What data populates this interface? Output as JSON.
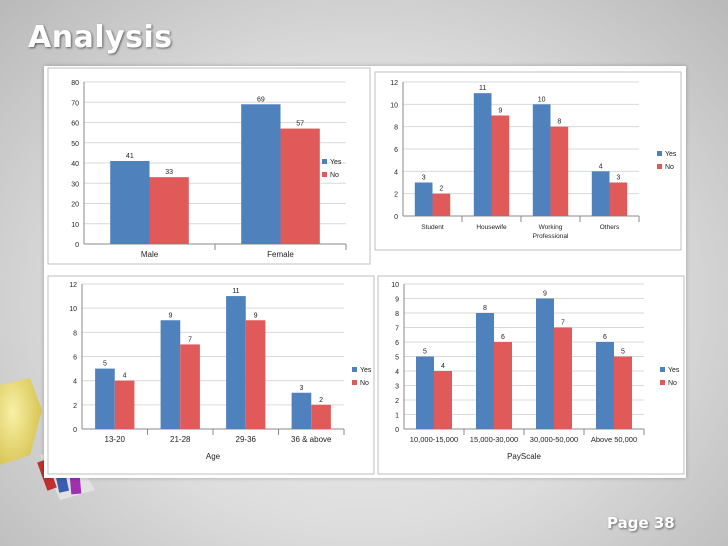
{
  "slide": {
    "title": "Analysis",
    "page_label": "Page 38"
  },
  "colors": {
    "yes": "#4f81bd",
    "no": "#e05a5a",
    "grid": "#d9d9d9",
    "axis": "#8a8a8a",
    "text": "#222222"
  },
  "chart_data": [
    {
      "type": "bar",
      "title": "",
      "xlabel": "",
      "ylabel": "",
      "categories": [
        "Male",
        "Female"
      ],
      "series": [
        {
          "name": "Yes",
          "values": [
            41,
            69
          ]
        },
        {
          "name": "No",
          "values": [
            33,
            57
          ]
        }
      ],
      "ylim": [
        0,
        80
      ],
      "ytick_step": 10,
      "grid": true,
      "legend": "right"
    },
    {
      "type": "bar",
      "title": "",
      "xlabel": "",
      "ylabel": "",
      "categories": [
        "Student",
        "Housewife",
        "Working Professional",
        "Others"
      ],
      "series": [
        {
          "name": "Yes",
          "values": [
            3,
            11,
            10,
            4
          ]
        },
        {
          "name": "No",
          "values": [
            2,
            9,
            8,
            3
          ]
        }
      ],
      "ylim": [
        0,
        12
      ],
      "ytick_step": 2,
      "grid": true,
      "legend": "right"
    },
    {
      "type": "bar",
      "title": "",
      "xlabel": "Age",
      "ylabel": "",
      "categories": [
        "13-20",
        "21-28",
        "29-36",
        "36 & above"
      ],
      "series": [
        {
          "name": "Yes",
          "values": [
            5,
            9,
            11,
            3
          ]
        },
        {
          "name": "No",
          "values": [
            4,
            7,
            9,
            2
          ]
        }
      ],
      "ylim": [
        0,
        12
      ],
      "ytick_step": 2,
      "grid": true,
      "legend": "right"
    },
    {
      "type": "bar",
      "title": "",
      "xlabel": "PayScale",
      "ylabel": "",
      "categories": [
        "10,000-15,000",
        "15,000-30,000",
        "30,000-50,000",
        "Above 50,000"
      ],
      "series": [
        {
          "name": "Yes",
          "values": [
            5,
            8,
            9,
            6
          ]
        },
        {
          "name": "No",
          "values": [
            4,
            6,
            7,
            5
          ]
        }
      ],
      "ylim": [
        0,
        10
      ],
      "ytick_step": 1,
      "grid": true,
      "legend": "right"
    }
  ]
}
